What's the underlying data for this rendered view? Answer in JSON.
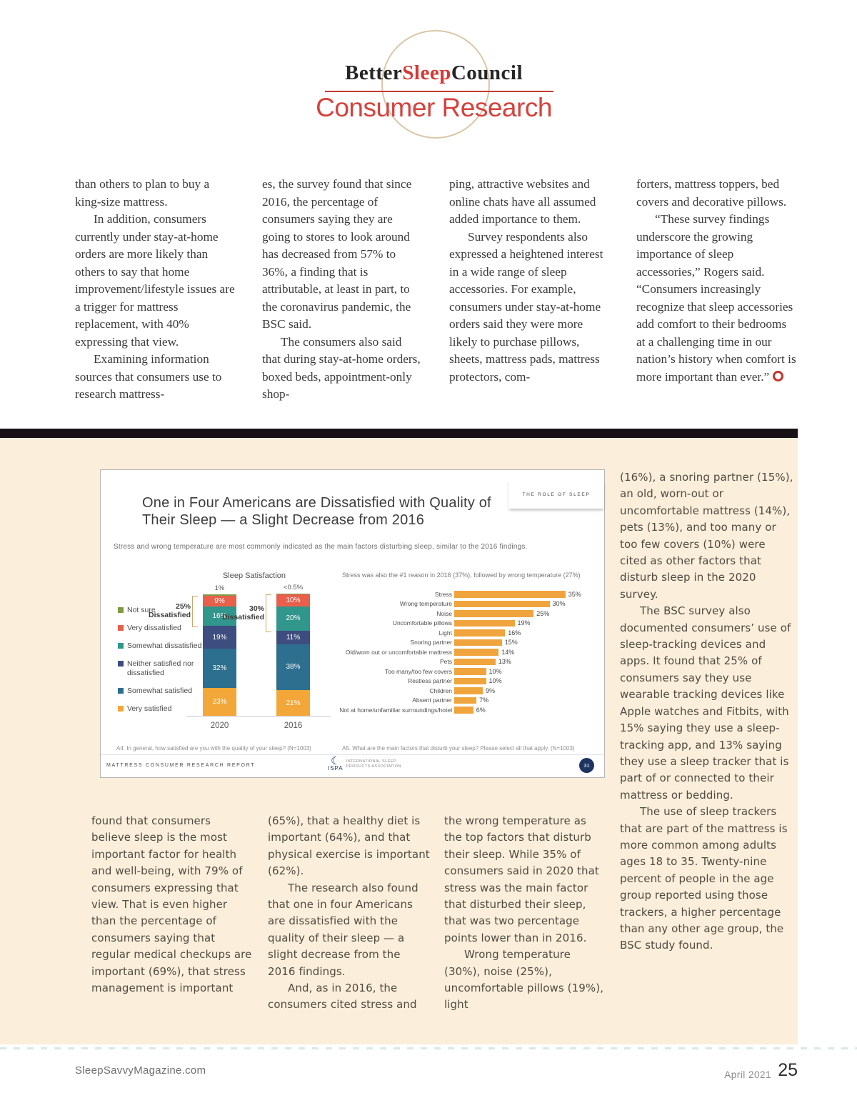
{
  "header": {
    "brand_better": "Better",
    "brand_sleep": "Sleep",
    "brand_council": "Council",
    "title": "Consumer Research"
  },
  "article": {
    "top_columns": [
      {
        "paragraphs": [
          {
            "text": "than others to plan to buy a king-size mattress.",
            "indent": false
          },
          {
            "text": "In addition, consumers currently under stay-at-home orders are more likely than others to say that home improvement/lifestyle issues are a trigger for mattress replacement, with 40% expressing that view.",
            "indent": true
          },
          {
            "text": "Examining information sources that consumers use to research mattress-",
            "indent": true
          }
        ]
      },
      {
        "paragraphs": [
          {
            "text": "es, the survey found that since 2016, the percentage of consumers saying they are going to stores to look around has decreased from 57% to 36%, a finding that is attributable, at least in part, to the coronavirus pandemic, the BSC said.",
            "indent": false
          },
          {
            "text": "The consumers also said that during stay-at-home orders, boxed beds, appointment-only shop-",
            "indent": true
          }
        ]
      },
      {
        "paragraphs": [
          {
            "text": "ping, attractive websites and online chats have all assumed added importance to them.",
            "indent": false
          },
          {
            "text": "Survey respondents also expressed a heightened interest in a wide range of sleep accessories. For example, consumers under stay-at-home orders said they were more likely to purchase pillows, sheets, mattress pads, mattress protectors, com-",
            "indent": true
          }
        ]
      },
      {
        "paragraphs": [
          {
            "text": "forters, mattress toppers, bed covers and decorative pillows.",
            "indent": false
          },
          {
            "text": "“These survey findings underscore the growing importance of sleep accessories,” Rogers said. “Consumers increasingly recognize that sleep accessories add comfort to their bedrooms at a challenging time in our nation’s history when comfort is more important than ever.”",
            "indent": true,
            "end_mark": true
          }
        ]
      }
    ],
    "side_column": {
      "paragraphs": [
        {
          "text": "(16%), a snoring partner (15%), an old, worn-out or uncomfortable mattress (14%), pets (13%), and too many or too few covers (10%) were cited as other factors that disturb sleep in the 2020 survey.",
          "indent": false
        },
        {
          "text": "The BSC survey also documented consumers’ use of sleep-tracking devices and apps. It found that 25% of consumers say they use wearable tracking devices like Apple watches and Fitbits, with 15% saying they use a sleep-tracking app, and 13% saying they use a sleep tracker that is part of or connected to their mattress or bedding.",
          "indent": true
        },
        {
          "text": "The use of sleep trackers that are part of the mattress is more common among adults ages 18 to 35. Twenty-nine percent of people in the age group reported using those trackers, a higher percentage than any other age group, the BSC study found.",
          "indent": true
        }
      ]
    },
    "bottom_columns": [
      {
        "paragraphs": [
          {
            "text": "found that consumers believe sleep is the most important factor for health and well-being, with 79% of consumers expressing that view. That is even higher than the percentage of consumers saying that regular medical checkups are important (69%), that stress management is important",
            "indent": false
          }
        ]
      },
      {
        "paragraphs": [
          {
            "text": "(65%), that a healthy diet is important (64%), and that physical exercise is important (62%).",
            "indent": false
          },
          {
            "text": "The research also found that one in four Americans are dissatisfied with the quality of their sleep — a slight decrease from the 2016 findings.",
            "indent": true
          },
          {
            "text": "And, as in 2016, the consumers cited stress and",
            "indent": true
          }
        ]
      },
      {
        "paragraphs": [
          {
            "text": "the wrong temperature as the top factors that disturb their sleep. While 35% of consumers said in 2020 that stress was the main factor that disturbed their sleep, that was two percentage points lower than in 2016.",
            "indent": false
          },
          {
            "text": "Wrong temperature (30%), noise (25%), uncomfortable pillows (19%), light",
            "indent": true
          }
        ]
      }
    ]
  },
  "slide": {
    "tag": "THE ROLE OF SLEEP",
    "title_line1": "One in Four Americans are Dissatisfied with Quality of",
    "title_line2": "Their Sleep — a Slight Decrease from 2016",
    "subtitle": "Stress and wrong temperature are most commonly indicated as the main factors disturbing sleep, similar to the 2016 findings.",
    "footnote_left": "A4. In general, how satisfied are you with the quality of your sleep? (N=1003)",
    "footnote_right": "A5. What are the main factors that disturb your sleep? Please select all that apply. (N=1003)",
    "footer_left": "MATTRESS CONSUMER RESEARCH REPORT",
    "logo": {
      "abbr": "ISPA",
      "name_line1": "INTERNATIONAL SLEEP",
      "name_line2": "PRODUCTS ASSOCIATION"
    },
    "page_badge": "31"
  },
  "chart_data": [
    {
      "type": "bar",
      "subtype": "stacked-vertical",
      "title": "Sleep Satisfaction",
      "categories": [
        "2020",
        "2016"
      ],
      "series": [
        {
          "name": "Not sure",
          "color": "#7d9c44",
          "values": [
            1,
            0.5
          ],
          "labels": [
            "1%",
            "<0.5%"
          ],
          "label_outside": true
        },
        {
          "name": "Very dissatisfied",
          "color": "#e8604c",
          "values": [
            9,
            10
          ],
          "labels": [
            "9%",
            "10%"
          ]
        },
        {
          "name": "Somewhat dissatisfied",
          "color": "#31968c",
          "values": [
            16,
            20
          ],
          "labels": [
            "16%",
            "20%"
          ]
        },
        {
          "name": "Neither satisfied nor dissatisfied",
          "color": "#3e4d7f",
          "values": [
            19,
            11
          ],
          "labels": [
            "19%",
            "11%"
          ]
        },
        {
          "name": "Somewhat satisfied",
          "color": "#2d6f8e",
          "values": [
            32,
            38
          ],
          "labels": [
            "32%",
            "38%"
          ]
        },
        {
          "name": "Very satisfied",
          "color": "#f3a738",
          "values": [
            23,
            21
          ],
          "labels": [
            "23%",
            "21%"
          ]
        }
      ],
      "annotations": [
        {
          "text": "25%",
          "sub": "Dissatisfied"
        },
        {
          "text": "30%",
          "sub": "Dissatisfied"
        }
      ],
      "legend_position": "left",
      "ylim": [
        0,
        100
      ]
    },
    {
      "type": "bar",
      "subtype": "horizontal",
      "caption": "Stress was also the #1 reason in 2016 (37%), followed by wrong temperature (27%)",
      "categories": [
        "Stress",
        "Wrong temperature",
        "Noise",
        "Uncomfortable pillows",
        "Light",
        "Snoring partner",
        "Old/worn out or uncomfortable mattress",
        "Pets",
        "Too many/too few covers",
        "Restless partner",
        "Children",
        "Absent partner",
        "Not at home/unfamiliar surroundings/hotel"
      ],
      "values": [
        35,
        30,
        25,
        19,
        16,
        15,
        14,
        13,
        10,
        10,
        9,
        7,
        6
      ],
      "bar_color": "#f0a43d",
      "xlim": [
        0,
        38
      ]
    }
  ],
  "footer": {
    "site": "SleepSavvyMagazine.com",
    "issue": "April 2021",
    "page_number": "25"
  }
}
